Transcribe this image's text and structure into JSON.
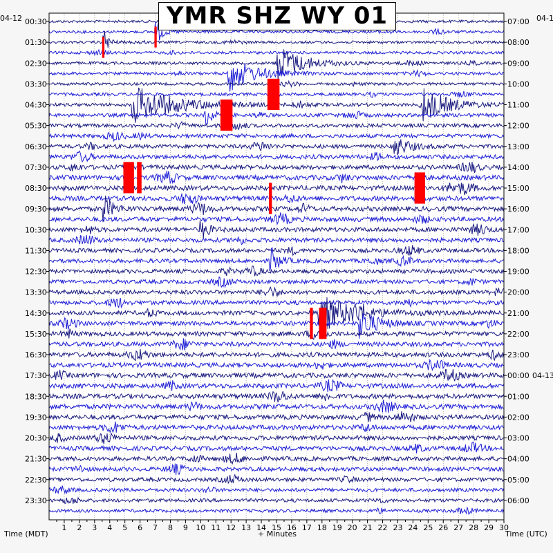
{
  "chart_data": {
    "type": "helicorder",
    "title": "YMR SHZ WY 01",
    "left_date": "04-12",
    "right_date": "04-1",
    "right_date_2": "04-13",
    "left_axis_label": "Time (MDT)",
    "right_axis_label": "Time (UTC)",
    "x_axis_label": "+ Minutes",
    "xlim": [
      0,
      30
    ],
    "x_ticks": [
      "1",
      "2",
      "3",
      "4",
      "5",
      "6",
      "7",
      "8",
      "9",
      "10",
      "11",
      "12",
      "13",
      "14",
      "15",
      "16",
      "17",
      "18",
      "19",
      "20",
      "21",
      "22",
      "23",
      "24",
      "25",
      "26",
      "27",
      "28",
      "29",
      "30"
    ],
    "left_times": [
      "00:30",
      "01:30",
      "02:30",
      "03:30",
      "04:30",
      "05:30",
      "06:30",
      "07:30",
      "08:30",
      "09:30",
      "10:30",
      "11:30",
      "12:30",
      "13:30",
      "14:30",
      "15:30",
      "16:30",
      "17:30",
      "18:30",
      "19:30",
      "20:30",
      "21:30",
      "22:30",
      "23:30"
    ],
    "right_times": [
      "07:00",
      "08:00",
      "09:00",
      "10:00",
      "11:00",
      "12:00",
      "13:00",
      "14:00",
      "15:00",
      "16:00",
      "17:00",
      "18:00",
      "19:00",
      "20:00",
      "21:00",
      "22:00",
      "23:00",
      "00:00",
      "01:00",
      "02:00",
      "03:00",
      "04:00",
      "05:00",
      "06:00"
    ],
    "trace_colors": [
      "#1a1a80",
      "#1f1fd6"
    ],
    "clip_color": "#ff0000",
    "row_activity": [
      0.3,
      0.35,
      0.3,
      0.35,
      0.4,
      0.4,
      0.35,
      0.45,
      0.5,
      0.6,
      0.65,
      0.7,
      0.75,
      0.85,
      0.9,
      1.0,
      1.0,
      1.0,
      1.0,
      0.95,
      0.9,
      0.85,
      0.8,
      0.75,
      0.75,
      0.75,
      0.8,
      0.8,
      0.85,
      0.85,
      0.9,
      0.9,
      0.95,
      0.95,
      1.0,
      1.0,
      1.0,
      1.0,
      0.95,
      0.95,
      0.9,
      0.9,
      0.85,
      0.8,
      0.7,
      0.6,
      0.55,
      0.5
    ],
    "events": [
      {
        "row": 1,
        "minute": 7.0,
        "amp": 1.6,
        "decay": 0.4
      },
      {
        "row": 2,
        "minute": 3.6,
        "amp": 1.4,
        "decay": 0.3
      },
      {
        "row": 5,
        "minute": 11.8,
        "amp": 2.0,
        "decay": 1.5
      },
      {
        "row": 4,
        "minute": 15.0,
        "amp": 2.0,
        "decay": 1.5
      },
      {
        "row": 8,
        "minute": 5.5,
        "amp": 2.0,
        "decay": 2.5
      },
      {
        "row": 8,
        "minute": 24.5,
        "amp": 2.0,
        "decay": 1.5
      },
      {
        "row": 18,
        "minute": 3.6,
        "amp": 1.5,
        "decay": 0.5
      },
      {
        "row": 9,
        "minute": 10.3,
        "amp": 1.2,
        "decay": 0.4
      },
      {
        "row": 20,
        "minute": 10.0,
        "amp": 1.3,
        "decay": 0.4
      },
      {
        "row": 28,
        "minute": 17.8,
        "amp": 2.0,
        "decay": 2.0
      },
      {
        "row": 29,
        "minute": 20.5,
        "amp": 1.6,
        "decay": 1.0
      },
      {
        "row": 23,
        "minute": 14.6,
        "amp": 1.5,
        "decay": 0.5
      },
      {
        "row": 12,
        "minute": 22.6,
        "amp": 1.4,
        "decay": 0.8
      }
    ],
    "clipped_segments": [
      {
        "row": 1,
        "minute_start": 6.95,
        "minute_end": 7.1,
        "rows_span": 2
      },
      {
        "row": 2,
        "minute_start": 3.5,
        "minute_end": 3.65,
        "rows_span": 2
      },
      {
        "row": 8,
        "minute_start": 11.3,
        "minute_end": 12.1,
        "rows_span": 3
      },
      {
        "row": 6,
        "minute_start": 14.4,
        "minute_end": 15.2,
        "rows_span": 3
      },
      {
        "row": 14,
        "minute_start": 4.9,
        "minute_end": 5.6,
        "rows_span": 3
      },
      {
        "row": 14,
        "minute_start": 5.8,
        "minute_end": 6.1,
        "rows_span": 3
      },
      {
        "row": 15,
        "minute_start": 24.1,
        "minute_end": 24.8,
        "rows_span": 3
      },
      {
        "row": 16,
        "minute_start": 14.5,
        "minute_end": 14.7,
        "rows_span": 3
      },
      {
        "row": 28,
        "minute_start": 17.2,
        "minute_end": 17.4,
        "rows_span": 3
      },
      {
        "row": 28,
        "minute_start": 17.8,
        "minute_end": 18.3,
        "rows_span": 3
      }
    ]
  }
}
